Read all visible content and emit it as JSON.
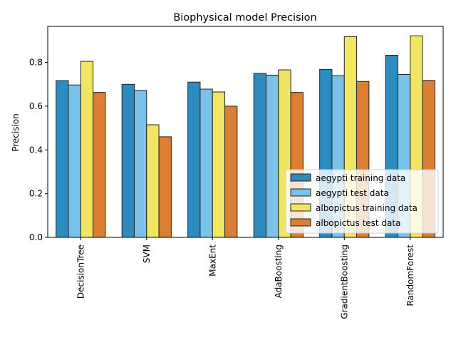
{
  "chart_data": {
    "type": "bar",
    "title": "Biophysical model Precision",
    "xlabel": "",
    "ylabel": "Precision",
    "categories": [
      "DecisionTree",
      "SVM",
      "MaxEnt",
      "AdaBoosting",
      "GradientBoosting",
      "RandomForest"
    ],
    "series": [
      {
        "name": "aegypti training data",
        "color": "#2e8bc0",
        "values": [
          0.717,
          0.7,
          0.71,
          0.75,
          0.768,
          0.833
        ]
      },
      {
        "name": "aegypti test data",
        "color": "#79c2ea",
        "values": [
          0.697,
          0.672,
          0.678,
          0.742,
          0.74,
          0.745
        ]
      },
      {
        "name": "albopictus training data",
        "color": "#f0e662",
        "values": [
          0.805,
          0.515,
          0.665,
          0.766,
          0.918,
          0.922
        ]
      },
      {
        "name": "albopictus test data",
        "color": "#dd7e35",
        "values": [
          0.663,
          0.46,
          0.6,
          0.663,
          0.713,
          0.718
        ]
      }
    ],
    "ylim": [
      0,
      0.965
    ],
    "yticks": [
      "0.0",
      "0.2",
      "0.4",
      "0.6",
      "0.8"
    ],
    "ytick_values": [
      0.0,
      0.2,
      0.4,
      0.6,
      0.8
    ],
    "legend_position": "lower-right",
    "grid": false,
    "bar_edge_color": "#222222"
  }
}
